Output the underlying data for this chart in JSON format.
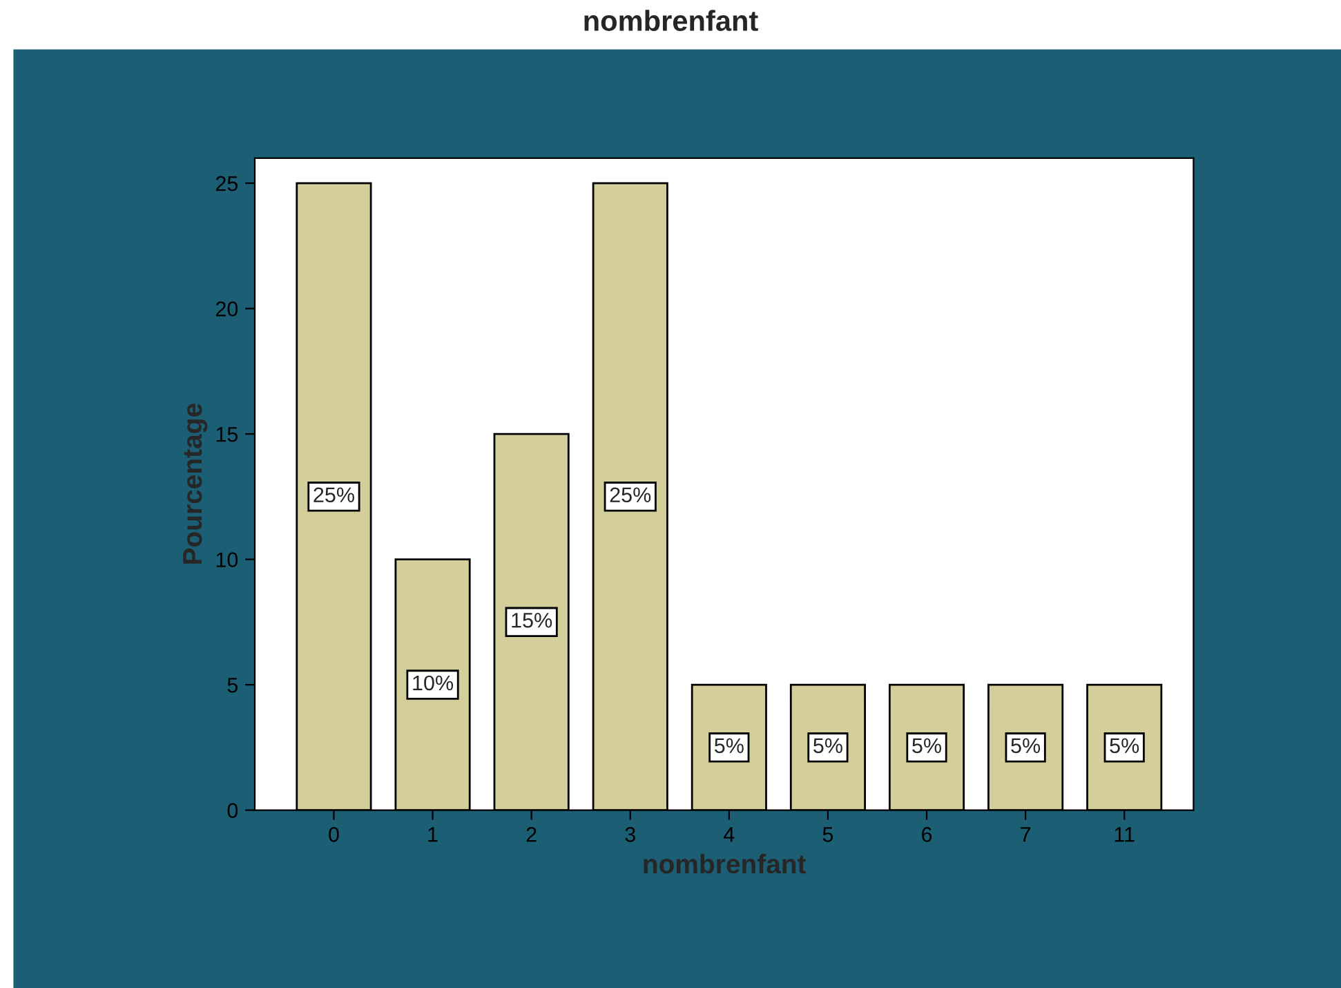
{
  "chart_data": {
    "type": "bar",
    "title": "nombrenfant",
    "xlabel": "nombrenfant",
    "ylabel": "Pourcentage",
    "categories": [
      "0",
      "1",
      "2",
      "3",
      "4",
      "5",
      "6",
      "7",
      "11"
    ],
    "values": [
      25,
      10,
      15,
      25,
      5,
      5,
      5,
      5,
      5
    ],
    "value_labels": [
      "25%",
      "10%",
      "15%",
      "25%",
      "5%",
      "5%",
      "5%",
      "5%",
      "5%"
    ],
    "color": "#d4cf9a",
    "ylim": [
      0,
      26
    ],
    "yticks": [
      0,
      5,
      10,
      15,
      20,
      25
    ],
    "grid": false,
    "legend": false
  }
}
